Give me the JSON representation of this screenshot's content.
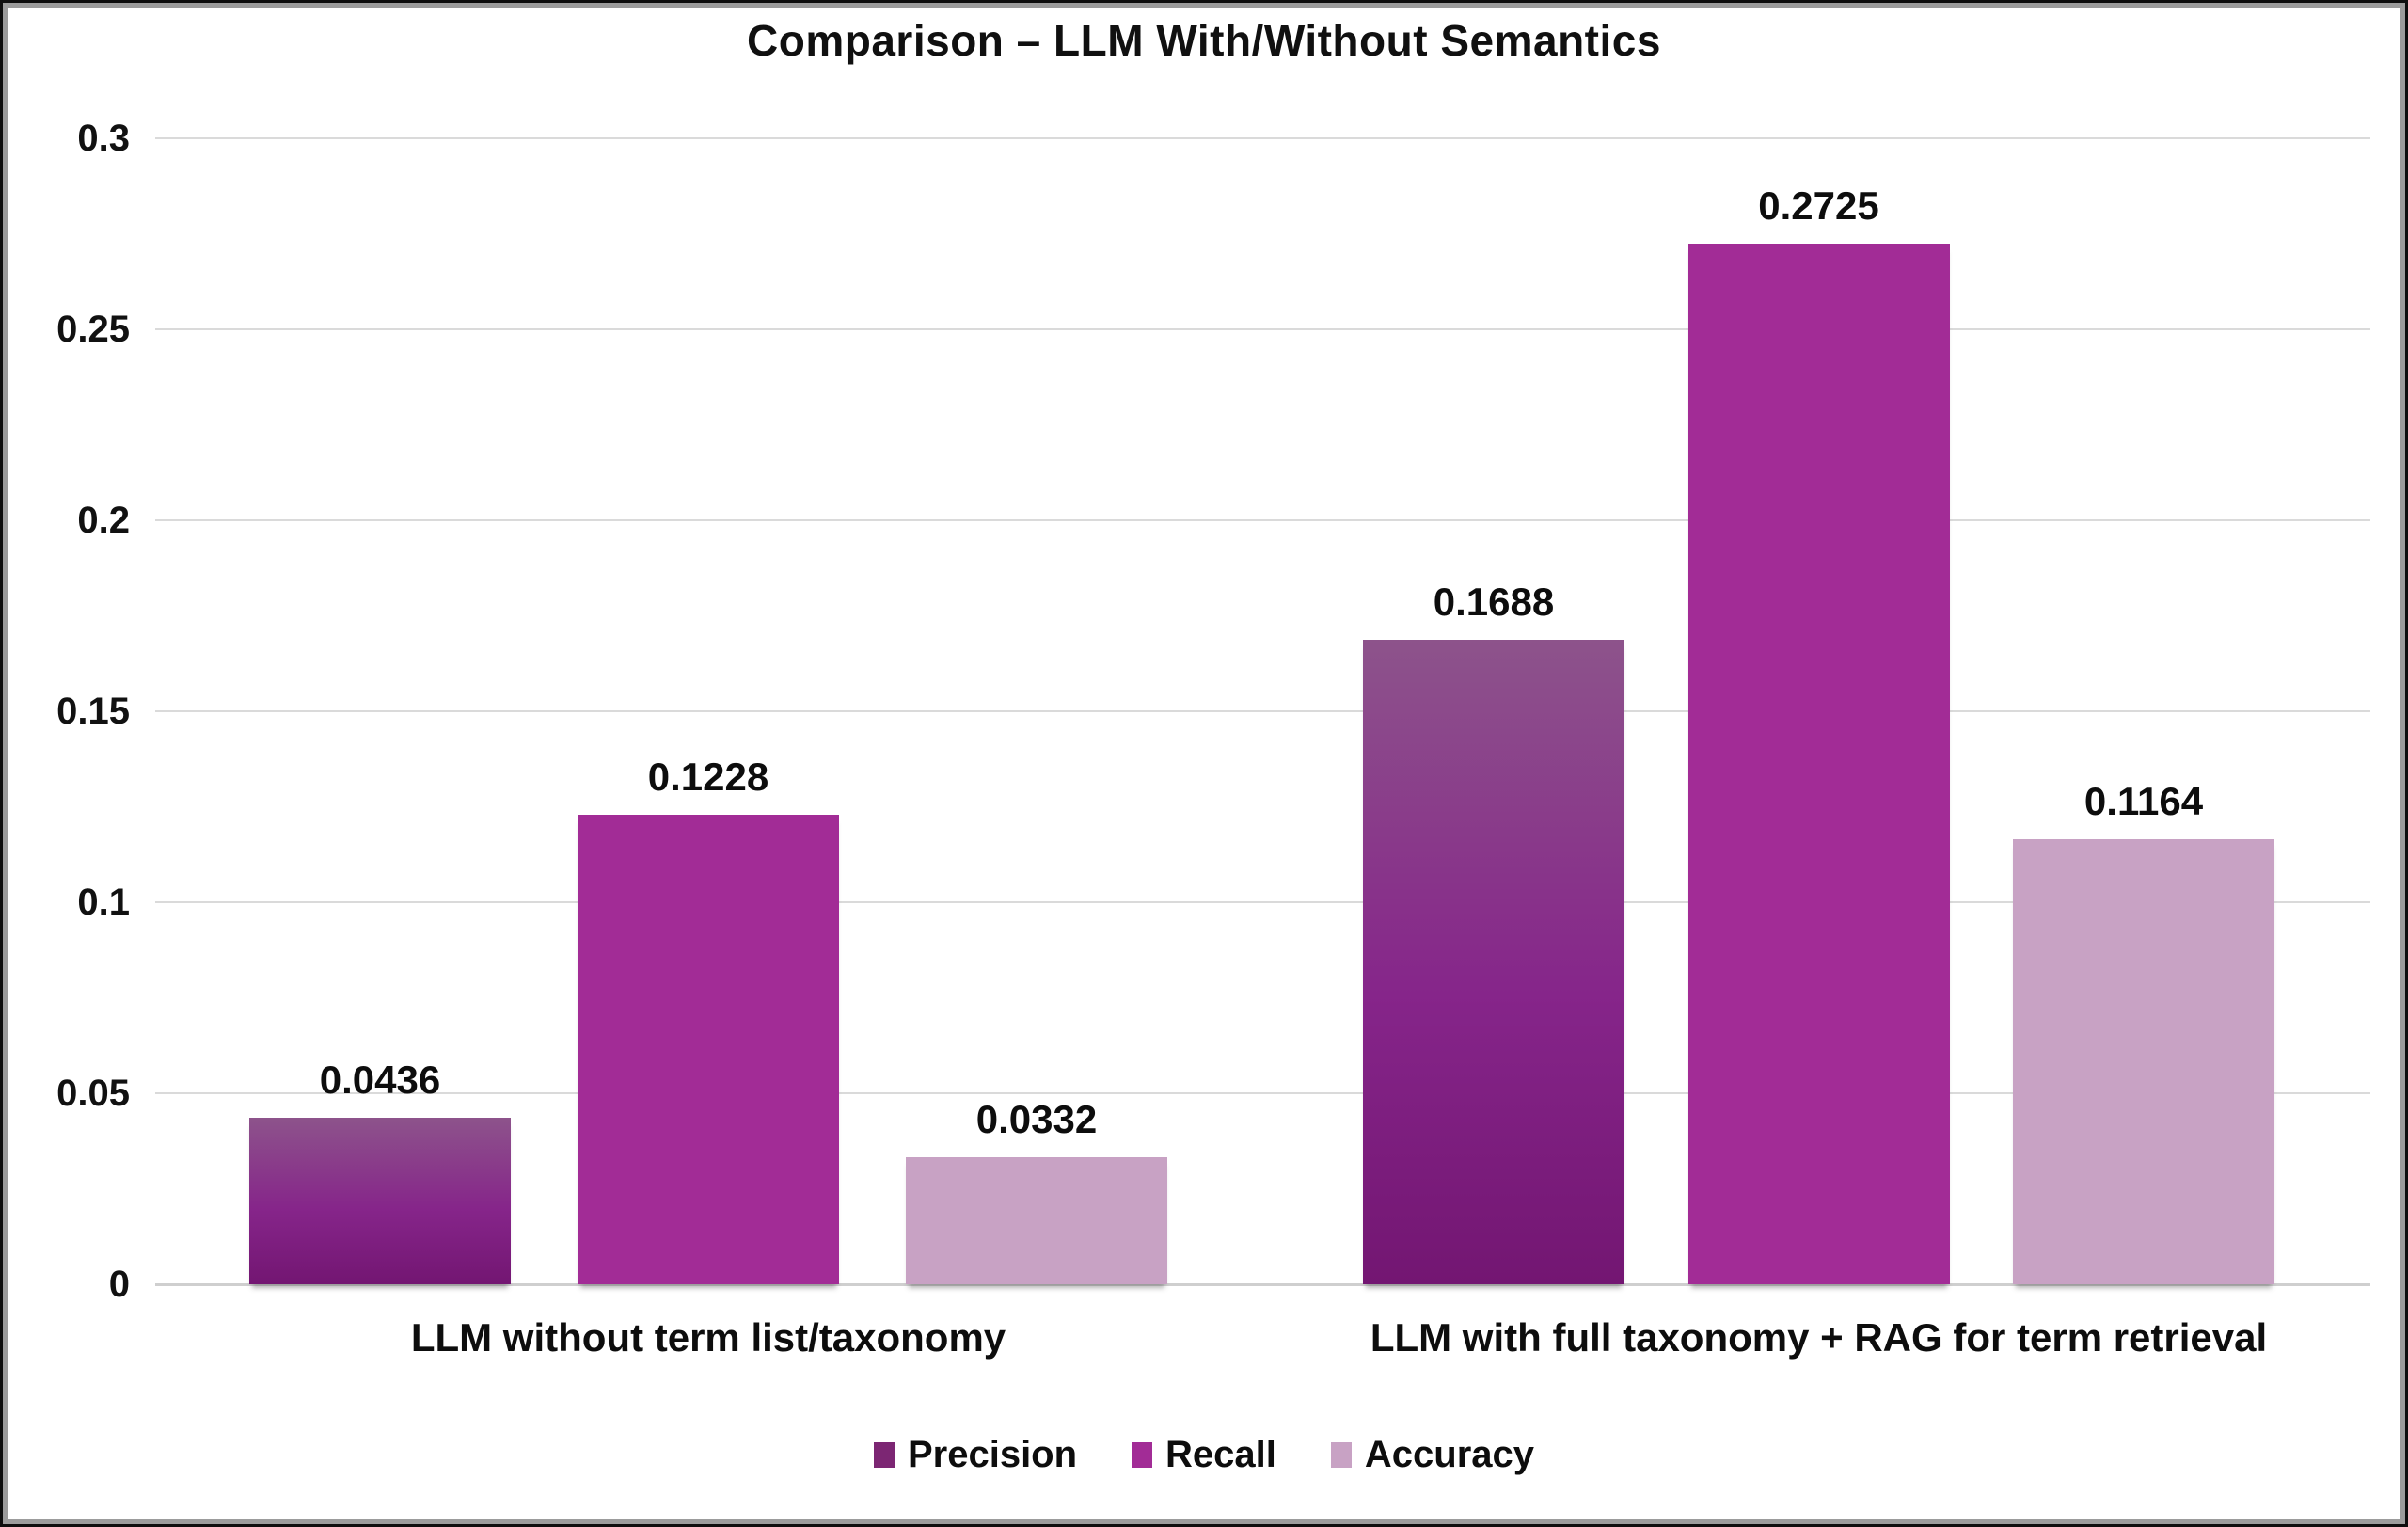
{
  "chart_data": {
    "type": "bar",
    "title": "Comparison – LLM With/Without Semantics",
    "categories": [
      "LLM without term list/taxonomy",
      "LLM with full taxonomy + RAG for term retrieval"
    ],
    "series": [
      {
        "name": "Precision",
        "values": [
          0.0436,
          0.1688
        ],
        "color": "#7c2673",
        "gradient": [
          "#8d538b",
          "#86258a",
          "#731672"
        ]
      },
      {
        "name": "Recall",
        "values": [
          0.1228,
          0.2725
        ],
        "color": "#a22c96"
      },
      {
        "name": "Accuracy",
        "values": [
          0.0332,
          0.1164
        ],
        "color": "#c8a2c4"
      }
    ],
    "value_labels": [
      [
        "0.0436",
        "0.1688"
      ],
      [
        "0.1228",
        "0.2725"
      ],
      [
        "0.0332",
        "0.1164"
      ]
    ],
    "xlabel": "",
    "ylabel": "",
    "ylim": [
      0,
      0.3
    ],
    "yticks": [
      0,
      0.05,
      0.1,
      0.15,
      0.2,
      0.25,
      0.3
    ],
    "ytick_labels": [
      "0",
      "0.05",
      "0.1",
      "0.15",
      "0.2",
      "0.25",
      "0.3"
    ],
    "grid": true,
    "legend_position": "bottom",
    "legend_entries": [
      "Precision",
      "Recall",
      "Accuracy"
    ]
  }
}
